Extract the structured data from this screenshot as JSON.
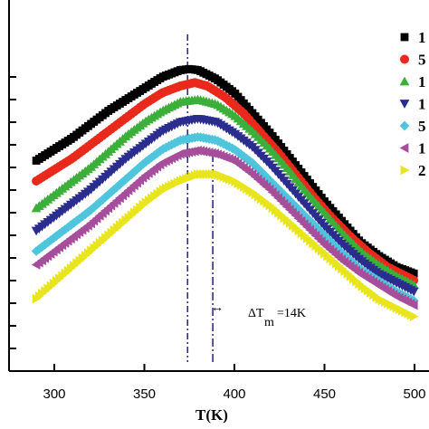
{
  "chart_data": {
    "type": "scatter",
    "xlabel": "T(K)",
    "ylabel": "",
    "xlim": [
      290,
      505
    ],
    "ylim": [
      0,
      13.5
    ],
    "xticks": [
      300,
      350,
      400,
      450,
      500
    ],
    "xtick_labels": [
      "300",
      "350",
      "400",
      "450",
      "500"
    ],
    "yticks": [
      1,
      2,
      3,
      4,
      5,
      6,
      7,
      8,
      9,
      10,
      11,
      12,
      13
    ],
    "grid": false,
    "legend_position": "right",
    "series": [
      {
        "name": "1",
        "color": "#000000",
        "marker": "square",
        "points": [
          [
            290,
            9.3
          ],
          [
            300,
            9.8
          ],
          [
            310,
            10.3
          ],
          [
            320,
            10.9
          ],
          [
            330,
            11.5
          ],
          [
            340,
            12.0
          ],
          [
            350,
            12.5
          ],
          [
            360,
            13.0
          ],
          [
            370,
            13.3
          ],
          [
            375,
            13.35
          ],
          [
            380,
            13.3
          ],
          [
            390,
            12.9
          ],
          [
            400,
            12.3
          ],
          [
            410,
            11.4
          ],
          [
            420,
            10.5
          ],
          [
            430,
            9.5
          ],
          [
            440,
            8.5
          ],
          [
            450,
            7.5
          ],
          [
            460,
            6.6
          ],
          [
            470,
            5.7
          ],
          [
            480,
            5.1
          ],
          [
            490,
            4.6
          ],
          [
            500,
            4.3
          ]
        ]
      },
      {
        "name": "5",
        "color": "#e8291c",
        "marker": "circle",
        "points": [
          [
            290,
            8.4
          ],
          [
            300,
            8.9
          ],
          [
            310,
            9.4
          ],
          [
            320,
            10.0
          ],
          [
            330,
            10.6
          ],
          [
            340,
            11.2
          ],
          [
            350,
            11.8
          ],
          [
            360,
            12.3
          ],
          [
            370,
            12.6
          ],
          [
            378,
            12.75
          ],
          [
            385,
            12.6
          ],
          [
            395,
            12.1
          ],
          [
            405,
            11.4
          ],
          [
            415,
            10.5
          ],
          [
            425,
            9.6
          ],
          [
            435,
            8.6
          ],
          [
            445,
            7.6
          ],
          [
            455,
            6.7
          ],
          [
            465,
            5.9
          ],
          [
            475,
            5.2
          ],
          [
            485,
            4.6
          ],
          [
            495,
            4.2
          ],
          [
            500,
            4.0
          ]
        ]
      },
      {
        "name": "1",
        "color": "#3cae3a",
        "marker": "triangle-up",
        "points": [
          [
            290,
            7.2
          ],
          [
            300,
            7.8
          ],
          [
            310,
            8.4
          ],
          [
            320,
            9.0
          ],
          [
            330,
            9.7
          ],
          [
            340,
            10.4
          ],
          [
            350,
            11.0
          ],
          [
            360,
            11.5
          ],
          [
            370,
            11.9
          ],
          [
            380,
            12.0
          ],
          [
            390,
            11.8
          ],
          [
            400,
            11.3
          ],
          [
            410,
            10.6
          ],
          [
            420,
            9.8
          ],
          [
            430,
            8.9
          ],
          [
            440,
            7.9
          ],
          [
            450,
            7.0
          ],
          [
            460,
            6.1
          ],
          [
            470,
            5.3
          ],
          [
            480,
            4.7
          ],
          [
            490,
            4.2
          ],
          [
            500,
            3.8
          ]
        ]
      },
      {
        "name": "1",
        "color": "#2b2d8e",
        "marker": "triangle-down",
        "points": [
          [
            290,
            6.2
          ],
          [
            300,
            6.8
          ],
          [
            310,
            7.4
          ],
          [
            320,
            8.0
          ],
          [
            330,
            8.7
          ],
          [
            340,
            9.4
          ],
          [
            350,
            10.0
          ],
          [
            360,
            10.6
          ],
          [
            370,
            11.0
          ],
          [
            380,
            11.15
          ],
          [
            390,
            11.0
          ],
          [
            400,
            10.5
          ],
          [
            410,
            9.9
          ],
          [
            420,
            9.1
          ],
          [
            430,
            8.2
          ],
          [
            440,
            7.3
          ],
          [
            450,
            6.4
          ],
          [
            460,
            5.6
          ],
          [
            470,
            4.9
          ],
          [
            480,
            4.3
          ],
          [
            490,
            3.9
          ],
          [
            500,
            3.5
          ]
        ]
      },
      {
        "name": "5",
        "color": "#4ec5dc",
        "marker": "diamond",
        "points": [
          [
            290,
            5.3
          ],
          [
            300,
            5.9
          ],
          [
            310,
            6.5
          ],
          [
            320,
            7.1
          ],
          [
            330,
            7.8
          ],
          [
            340,
            8.5
          ],
          [
            350,
            9.2
          ],
          [
            360,
            9.8
          ],
          [
            370,
            10.2
          ],
          [
            380,
            10.35
          ],
          [
            390,
            10.2
          ],
          [
            400,
            9.8
          ],
          [
            410,
            9.2
          ],
          [
            420,
            8.4
          ],
          [
            430,
            7.6
          ],
          [
            440,
            6.8
          ],
          [
            450,
            6.0
          ],
          [
            460,
            5.2
          ],
          [
            470,
            4.5
          ],
          [
            480,
            4.0
          ],
          [
            490,
            3.5
          ],
          [
            500,
            3.1
          ]
        ]
      },
      {
        "name": "1",
        "color": "#a64d9b",
        "marker": "triangle-left",
        "points": [
          [
            290,
            4.7
          ],
          [
            300,
            5.3
          ],
          [
            310,
            5.9
          ],
          [
            320,
            6.5
          ],
          [
            330,
            7.2
          ],
          [
            340,
            7.9
          ],
          [
            350,
            8.6
          ],
          [
            360,
            9.2
          ],
          [
            370,
            9.6
          ],
          [
            380,
            9.75
          ],
          [
            390,
            9.6
          ],
          [
            400,
            9.3
          ],
          [
            410,
            8.7
          ],
          [
            420,
            8.0
          ],
          [
            430,
            7.2
          ],
          [
            440,
            6.4
          ],
          [
            450,
            5.6
          ],
          [
            460,
            4.9
          ],
          [
            470,
            4.3
          ],
          [
            480,
            3.8
          ],
          [
            490,
            3.3
          ],
          [
            500,
            2.9
          ]
        ]
      },
      {
        "name": "2",
        "color": "#e9e51c",
        "marker": "triangle-right",
        "points": [
          [
            290,
            3.2
          ],
          [
            300,
            3.9
          ],
          [
            310,
            4.6
          ],
          [
            320,
            5.3
          ],
          [
            330,
            6.0
          ],
          [
            340,
            6.7
          ],
          [
            350,
            7.4
          ],
          [
            360,
            8.0
          ],
          [
            370,
            8.4
          ],
          [
            380,
            8.7
          ],
          [
            390,
            8.7
          ],
          [
            400,
            8.4
          ],
          [
            410,
            7.9
          ],
          [
            420,
            7.3
          ],
          [
            430,
            6.6
          ],
          [
            440,
            5.9
          ],
          [
            450,
            5.2
          ],
          [
            460,
            4.5
          ],
          [
            470,
            3.8
          ],
          [
            480,
            3.2
          ],
          [
            490,
            2.8
          ],
          [
            500,
            2.4
          ]
        ]
      }
    ],
    "annotations": {
      "ref_line_1_x": 374,
      "ref_line_2_x": 388,
      "arrow_glyph": "↔",
      "label_main": "ΔT",
      "label_sub": "m",
      "label_rest": "=14K"
    }
  }
}
